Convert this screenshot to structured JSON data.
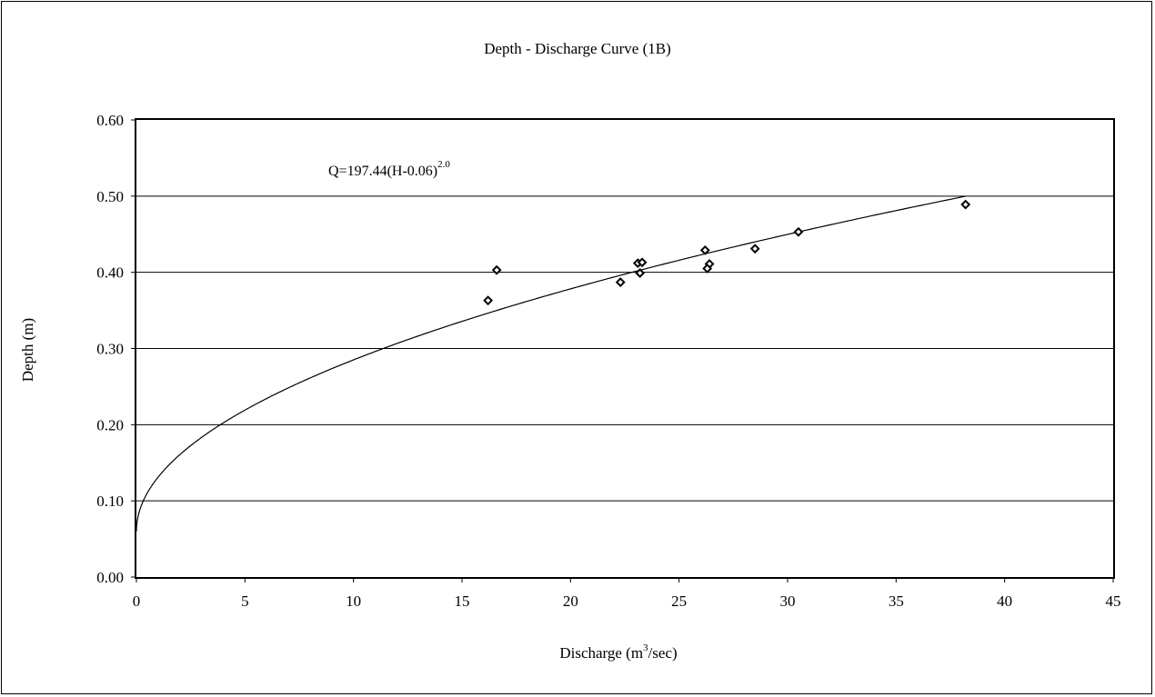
{
  "chart_data": {
    "type": "scatter",
    "title": "Depth - Discharge Curve (1B)",
    "xlabel": "Discharge (m3/sec)",
    "xlabel_parts": {
      "before": "Discharge (m",
      "sup": "3",
      "after": "/sec)"
    },
    "ylabel": "Depth (m)",
    "xlim": [
      0,
      45
    ],
    "ylim": [
      0,
      0.6
    ],
    "x_ticks": [
      0,
      5,
      10,
      15,
      20,
      25,
      30,
      35,
      40,
      45
    ],
    "x_tick_labels": [
      "0",
      "5",
      "10",
      "15",
      "20",
      "25",
      "30",
      "35",
      "40",
      "45"
    ],
    "y_ticks": [
      0,
      0.1,
      0.2,
      0.3,
      0.4,
      0.5,
      0.6
    ],
    "y_tick_labels": [
      "0.00",
      "0.10",
      "0.20",
      "0.30",
      "0.40",
      "0.50",
      "0.60"
    ],
    "grid": "horizontal",
    "legend": "none",
    "series": [
      {
        "marker": "diamond",
        "points": [
          {
            "x": 16.2,
            "y": 0.363
          },
          {
            "x": 16.6,
            "y": 0.403
          },
          {
            "x": 22.3,
            "y": 0.387
          },
          {
            "x": 23.1,
            "y": 0.412
          },
          {
            "x": 23.3,
            "y": 0.413
          },
          {
            "x": 23.2,
            "y": 0.399
          },
          {
            "x": 26.2,
            "y": 0.429
          },
          {
            "x": 26.4,
            "y": 0.411
          },
          {
            "x": 26.3,
            "y": 0.405
          },
          {
            "x": 28.5,
            "y": 0.431
          },
          {
            "x": 30.5,
            "y": 0.453
          },
          {
            "x": 38.2,
            "y": 0.489
          }
        ]
      }
    ],
    "fit_curve": {
      "equation_parts": {
        "before": "Q=197.44(H-0.06)",
        "sup": "2.0"
      },
      "coefficient": 197.44,
      "offset": 0.06,
      "exponent": 2.0,
      "y_range": [
        0.06,
        0.5
      ]
    }
  }
}
